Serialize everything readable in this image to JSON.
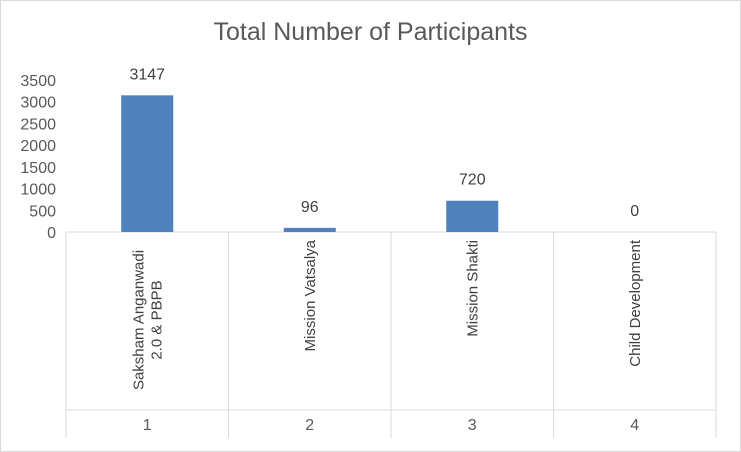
{
  "chart_data": {
    "type": "bar",
    "title": "Total Number of Participants",
    "categories": [
      {
        "number": "1",
        "label_lines": [
          "Saksham Anganwadi",
          "2.0 & PBPB"
        ]
      },
      {
        "number": "2",
        "label_lines": [
          "Mission Vatsalya"
        ]
      },
      {
        "number": "3",
        "label_lines": [
          "Mission Shakti"
        ]
      },
      {
        "number": "4",
        "label_lines": [
          "Child Development"
        ]
      }
    ],
    "values": [
      3147,
      96,
      720,
      0
    ],
    "data_labels": [
      "3147",
      "96",
      "720",
      "0"
    ],
    "yticks": [
      "0",
      "500",
      "1000",
      "1500",
      "2000",
      "2500",
      "3000",
      "3500"
    ],
    "ylim": [
      0,
      3500
    ],
    "grid": false,
    "legend": "none",
    "bar_color": "#4f81bd"
  }
}
